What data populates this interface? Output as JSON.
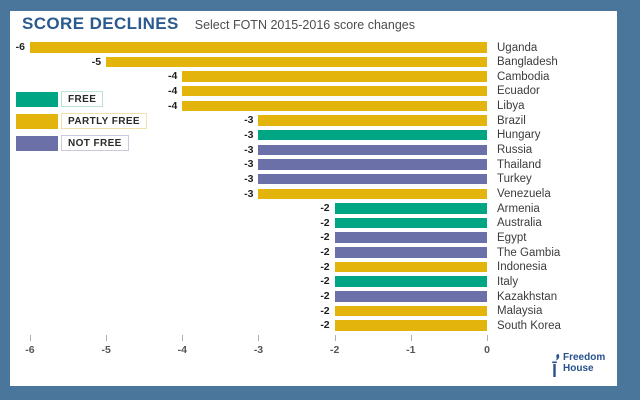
{
  "chart_data": {
    "type": "bar",
    "orientation": "horizontal",
    "title": "SCORE DECLINES",
    "subtitle": "Select FOTN 2015-2016 score changes",
    "xlabel": "",
    "ylabel": "",
    "xlim": [
      -6,
      0
    ],
    "x_ticks": [
      "-6",
      "-5",
      "-4",
      "-3",
      "-2",
      "-1",
      "0"
    ],
    "x_tick_values": [
      -6,
      -5,
      -4,
      -3,
      -2,
      -1,
      0
    ],
    "grid": false,
    "legend_position": "upper-left-inside",
    "legend": [
      {
        "label": "FREE",
        "status": "FREE"
      },
      {
        "label": "PARTLY FREE",
        "status": "PARTLY_FREE"
      },
      {
        "label": "NOT FREE",
        "status": "NOT_FREE"
      }
    ],
    "status_colors": {
      "FREE": "#00a583",
      "PARTLY_FREE": "#e3b50c",
      "NOT_FREE": "#6b71a8"
    },
    "legend_box_border_colors": {
      "FREE": "#b9e2d2",
      "PARTLY_FREE": "#f2dfaa",
      "NOT_FREE": "#c9cbdd"
    },
    "rows": [
      {
        "country": "Uganda",
        "value": -6,
        "value_label": "-6",
        "status": "PARTLY_FREE"
      },
      {
        "country": "Bangladesh",
        "value": -5,
        "value_label": "-5",
        "status": "PARTLY_FREE"
      },
      {
        "country": "Cambodia",
        "value": -4,
        "value_label": "-4",
        "status": "PARTLY_FREE"
      },
      {
        "country": "Ecuador",
        "value": -4,
        "value_label": "-4",
        "status": "PARTLY_FREE"
      },
      {
        "country": "Libya",
        "value": -4,
        "value_label": "-4",
        "status": "PARTLY_FREE"
      },
      {
        "country": "Brazil",
        "value": -3,
        "value_label": "-3",
        "status": "PARTLY_FREE"
      },
      {
        "country": "Hungary",
        "value": -3,
        "value_label": "-3",
        "status": "FREE"
      },
      {
        "country": "Russia",
        "value": -3,
        "value_label": "-3",
        "status": "NOT_FREE"
      },
      {
        "country": "Thailand",
        "value": -3,
        "value_label": "-3",
        "status": "NOT_FREE"
      },
      {
        "country": "Turkey",
        "value": -3,
        "value_label": "-3",
        "status": "NOT_FREE"
      },
      {
        "country": "Venezuela",
        "value": -3,
        "value_label": "-3",
        "status": "PARTLY_FREE"
      },
      {
        "country": "Armenia",
        "value": -2,
        "value_label": "-2",
        "status": "FREE"
      },
      {
        "country": "Australia",
        "value": -2,
        "value_label": "-2",
        "status": "FREE"
      },
      {
        "country": "Egypt",
        "value": -2,
        "value_label": "-2",
        "status": "NOT_FREE"
      },
      {
        "country": "The Gambia",
        "value": -2,
        "value_label": "-2",
        "status": "NOT_FREE"
      },
      {
        "country": "Indonesia",
        "value": -2,
        "value_label": "-2",
        "status": "PARTLY_FREE"
      },
      {
        "country": "Italy",
        "value": -2,
        "value_label": "-2",
        "status": "FREE"
      },
      {
        "country": "Kazakhstan",
        "value": -2,
        "value_label": "-2",
        "status": "NOT_FREE"
      },
      {
        "country": "Malaysia",
        "value": -2,
        "value_label": "-2",
        "status": "PARTLY_FREE"
      },
      {
        "country": "South Korea",
        "value": -2,
        "value_label": "-2",
        "status": "PARTLY_FREE"
      }
    ]
  },
  "footer": {
    "logo_line1": "Freedom",
    "logo_line2": "House"
  },
  "colors": {
    "frame": "#4a769c",
    "panel": "#ffffff",
    "title": "#2a5a8e",
    "subtitle": "#4d4d4d",
    "logo_blue": "#28518f"
  }
}
